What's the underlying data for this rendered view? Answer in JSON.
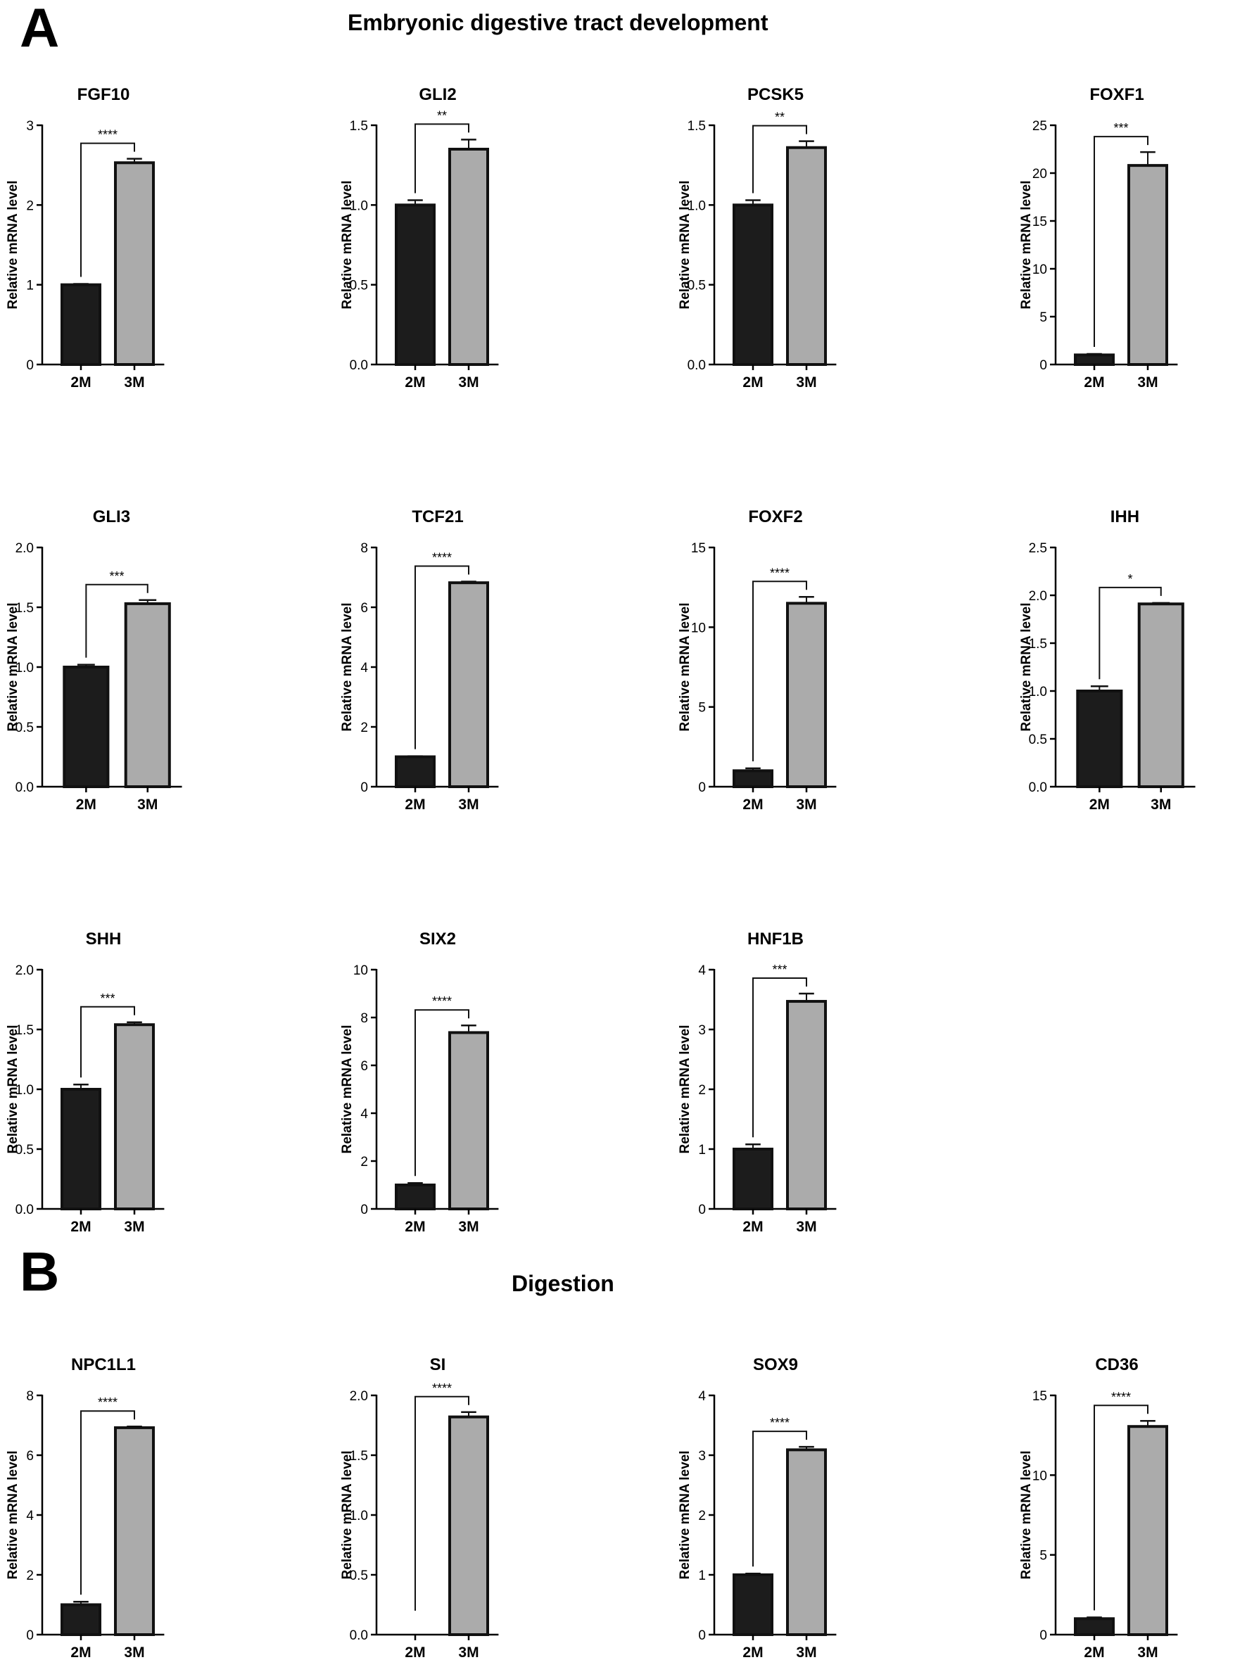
{
  "panels": [
    {
      "letter": "A",
      "title": "Embryonic digestive tract development"
    },
    {
      "letter": "B",
      "title": "Digestion"
    }
  ],
  "colors": {
    "bar_2M": "#1c1c1c",
    "bar_3M": "#ababab",
    "axis": "#000000"
  },
  "chart_data": [
    {
      "type": "bar",
      "panel": "A",
      "title": "FGF10",
      "categories": [
        "2M",
        "3M"
      ],
      "values": [
        1.0,
        2.53
      ],
      "errors": [
        0.01,
        0.05
      ],
      "ylabel": "Relative mRNA level",
      "ylim": [
        0,
        3
      ],
      "yticks": [
        "0",
        "1",
        "2",
        "3"
      ],
      "significance": "****"
    },
    {
      "type": "bar",
      "panel": "A",
      "title": "GLI2",
      "categories": [
        "2M",
        "3M"
      ],
      "values": [
        1.0,
        1.35
      ],
      "errors": [
        0.03,
        0.06
      ],
      "ylabel": "Relative mRNA level",
      "ylim": [
        0,
        1.5
      ],
      "yticks": [
        "0.0",
        "0.5",
        "1.0",
        "1.5"
      ],
      "significance": "**"
    },
    {
      "type": "bar",
      "panel": "A",
      "title": "PCSK5",
      "categories": [
        "2M",
        "3M"
      ],
      "values": [
        1.0,
        1.36
      ],
      "errors": [
        0.03,
        0.04
      ],
      "ylabel": "Relative mRNA level",
      "ylim": [
        0,
        1.5
      ],
      "yticks": [
        "0.0",
        "0.5",
        "1.0",
        "1.5"
      ],
      "significance": "**"
    },
    {
      "type": "bar",
      "panel": "A",
      "title": "FOXF1",
      "categories": [
        "2M",
        "3M"
      ],
      "values": [
        1.0,
        20.8
      ],
      "errors": [
        0.1,
        1.4
      ],
      "ylabel": "Relative mRNA level",
      "ylim": [
        0,
        25
      ],
      "yticks": [
        "0",
        "5",
        "10",
        "15",
        "20",
        "25"
      ],
      "significance": "***"
    },
    {
      "type": "bar",
      "panel": "A",
      "title": "GLI3",
      "categories": [
        "2M",
        "3M"
      ],
      "values": [
        1.0,
        1.53
      ],
      "errors": [
        0.02,
        0.03
      ],
      "ylabel": "Relative mRNA level",
      "ylim": [
        0,
        2.0
      ],
      "yticks": [
        "0.0",
        "0.5",
        "1.0",
        "1.5",
        "2.0"
      ],
      "significance": "***"
    },
    {
      "type": "bar",
      "panel": "A",
      "title": "TCF21",
      "categories": [
        "2M",
        "3M"
      ],
      "values": [
        1.0,
        6.82
      ],
      "errors": [
        0.02,
        0.04
      ],
      "ylabel": "Relative mRNA level",
      "ylim": [
        0,
        8
      ],
      "yticks": [
        "0",
        "2",
        "4",
        "6",
        "8"
      ],
      "significance": "****"
    },
    {
      "type": "bar",
      "panel": "A",
      "title": "FOXF2",
      "categories": [
        "2M",
        "3M"
      ],
      "values": [
        1.0,
        11.5
      ],
      "errors": [
        0.15,
        0.4
      ],
      "ylabel": "Relative mRNA level",
      "ylim": [
        0,
        15
      ],
      "yticks": [
        "0",
        "5",
        "10",
        "15"
      ],
      "significance": "****"
    },
    {
      "type": "bar",
      "panel": "A",
      "title": "IHH",
      "categories": [
        "2M",
        "3M"
      ],
      "values": [
        1.0,
        1.91
      ],
      "errors": [
        0.05,
        0.01
      ],
      "ylabel": "Relative mRNA level",
      "ylim": [
        0,
        2.5
      ],
      "yticks": [
        "0.0",
        "0.5",
        "1.0",
        "1.5",
        "2.0",
        "2.5"
      ],
      "significance": "*"
    },
    {
      "type": "bar",
      "panel": "A",
      "title": "SHH",
      "categories": [
        "2M",
        "3M"
      ],
      "values": [
        1.0,
        1.54
      ],
      "errors": [
        0.04,
        0.02
      ],
      "ylabel": "Relative mRNA level",
      "ylim": [
        0,
        2.0
      ],
      "yticks": [
        "0.0",
        "0.5",
        "1.0",
        "1.5",
        "2.0"
      ],
      "significance": "***"
    },
    {
      "type": "bar",
      "panel": "A",
      "title": "SIX2",
      "categories": [
        "2M",
        "3M"
      ],
      "values": [
        1.0,
        7.37
      ],
      "errors": [
        0.08,
        0.3
      ],
      "ylabel": "Relative mRNA level",
      "ylim": [
        0,
        10
      ],
      "yticks": [
        "0",
        "2",
        "4",
        "6",
        "8",
        "10"
      ],
      "significance": "****"
    },
    {
      "type": "bar",
      "panel": "A",
      "title": "HNF1B",
      "categories": [
        "2M",
        "3M"
      ],
      "values": [
        1.0,
        3.47
      ],
      "errors": [
        0.08,
        0.13
      ],
      "ylabel": "Relative mRNA level",
      "ylim": [
        0,
        4
      ],
      "yticks": [
        "0",
        "1",
        "2",
        "3",
        "4"
      ],
      "significance": "***"
    },
    {
      "type": "bar",
      "panel": "B",
      "title": "NPC1L1",
      "categories": [
        "2M",
        "3M"
      ],
      "values": [
        1.0,
        6.92
      ],
      "errors": [
        0.1,
        0.04
      ],
      "ylabel": "Relative mRNA level",
      "ylim": [
        0,
        8
      ],
      "yticks": [
        "0",
        "2",
        "4",
        "6",
        "8"
      ],
      "significance": "****"
    },
    {
      "type": "bar",
      "panel": "B",
      "title": "SI",
      "categories": [
        "2M",
        "3M"
      ],
      "values": [
        0.0,
        1.82
      ],
      "errors": [
        0.0,
        0.04
      ],
      "ylabel": "Relative mRNA level",
      "ylim": [
        0,
        2.0
      ],
      "yticks": [
        "0.0",
        "0.5",
        "1.0",
        "1.5",
        "2.0"
      ],
      "significance": "****"
    },
    {
      "type": "bar",
      "panel": "B",
      "title": "SOX9",
      "categories": [
        "2M",
        "3M"
      ],
      "values": [
        1.0,
        3.09
      ],
      "errors": [
        0.02,
        0.05
      ],
      "ylabel": "Relative mRNA level",
      "ylim": [
        0,
        4
      ],
      "yticks": [
        "0",
        "1",
        "2",
        "3",
        "4"
      ],
      "significance": "****"
    },
    {
      "type": "bar",
      "panel": "B",
      "title": "CD36",
      "categories": [
        "2M",
        "3M"
      ],
      "values": [
        1.0,
        13.05
      ],
      "errors": [
        0.08,
        0.35
      ],
      "ylabel": "Relative mRNA level",
      "ylim": [
        0,
        15
      ],
      "yticks": [
        "0",
        "5",
        "10",
        "15"
      ],
      "significance": "****"
    }
  ]
}
